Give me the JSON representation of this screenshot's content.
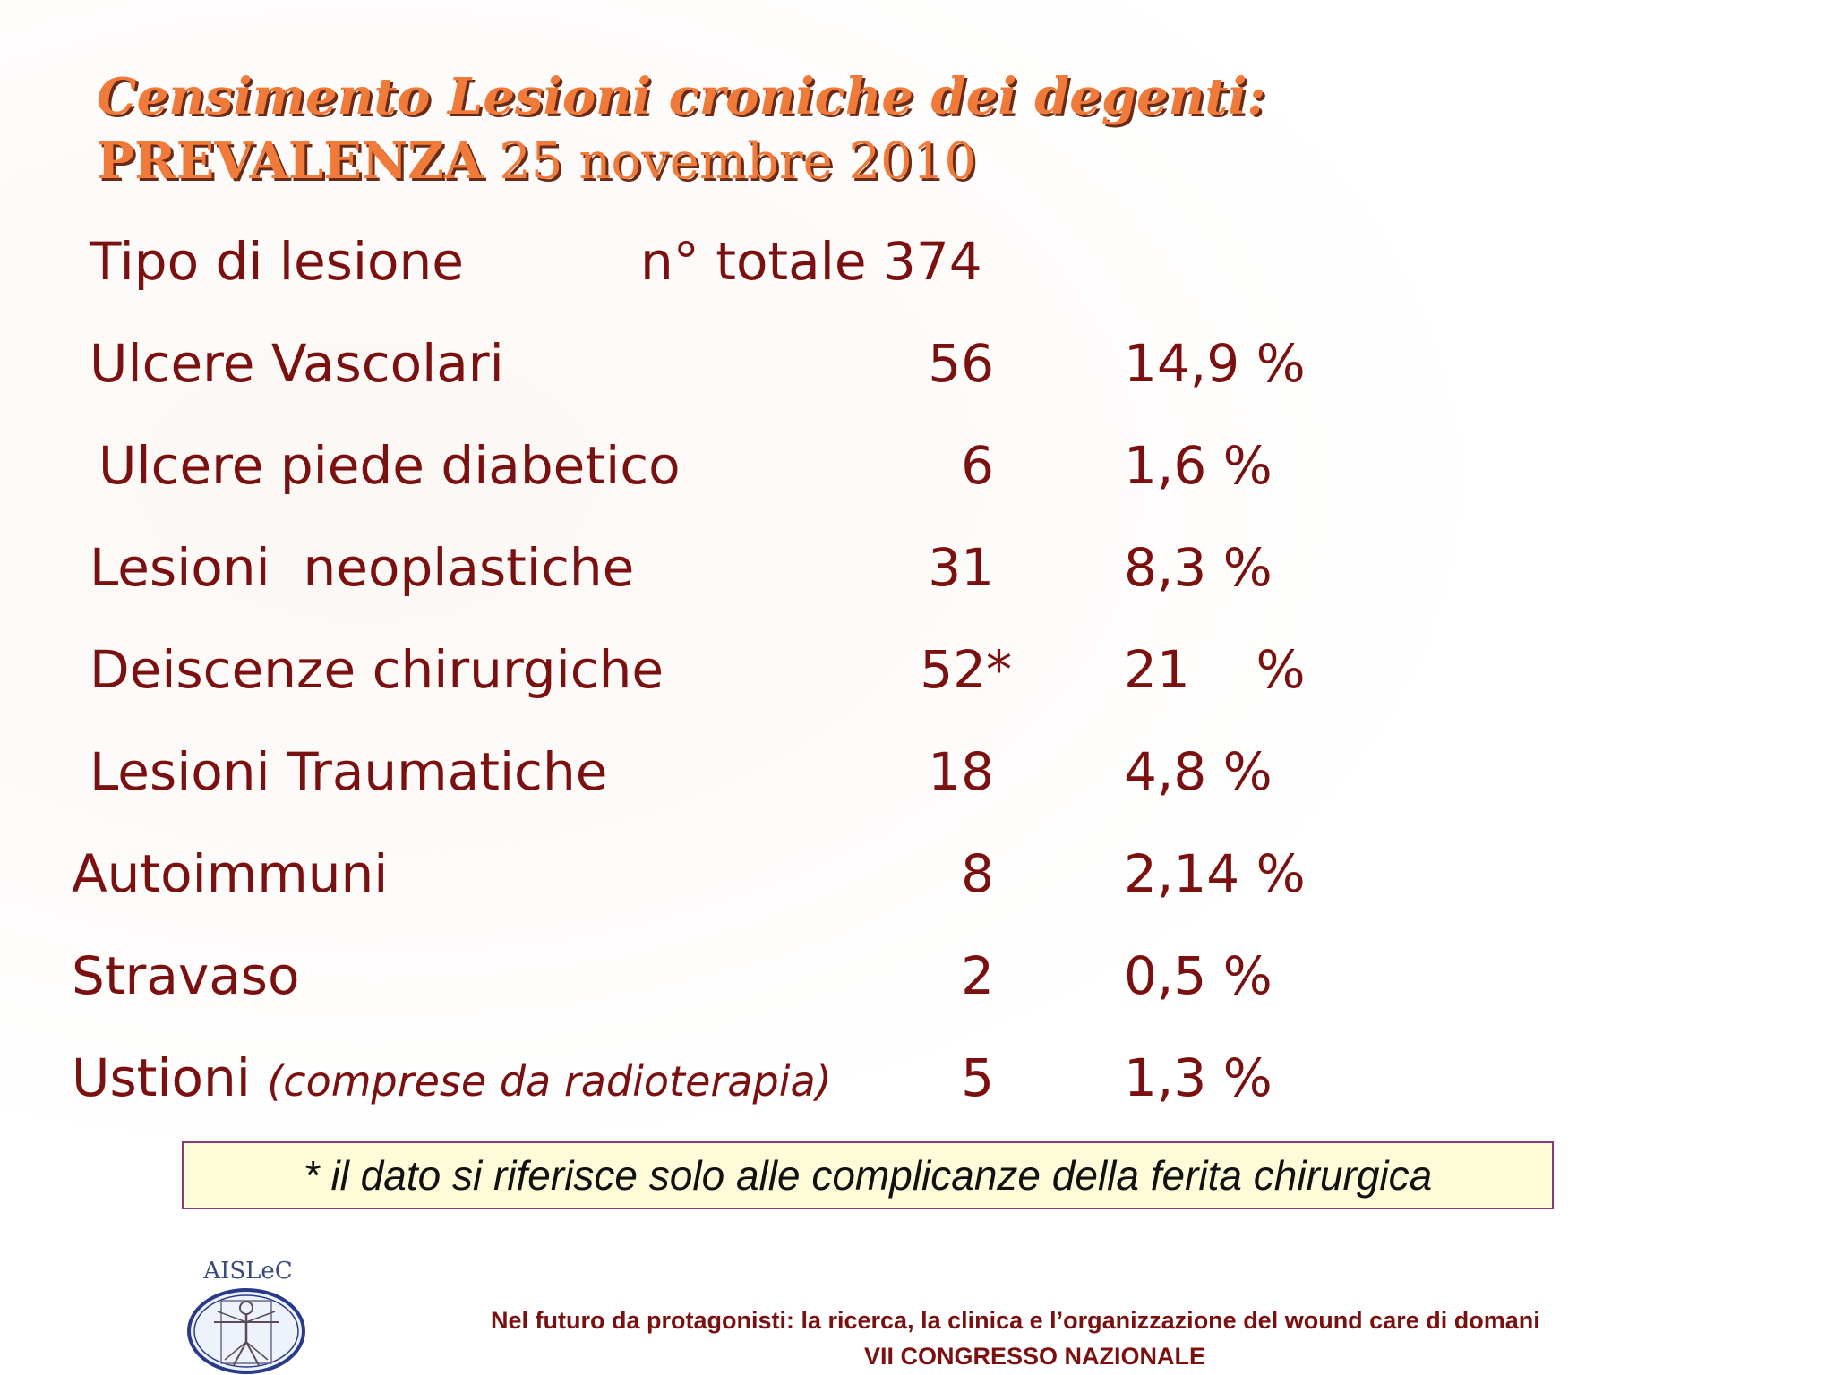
{
  "title": {
    "line1": "Censimento Lesioni croniche dei  degenti:",
    "line2_bold": "PREVALENZA",
    "line2_rest": " 25 novembre 2010"
  },
  "header": {
    "type_label": "Tipo di lesione",
    "total_label": "n° totale  374"
  },
  "rows": [
    {
      "label": "Ulcere Vascolari",
      "count": "56",
      "percent": "14,9 %"
    },
    {
      "label": "Ulcere piede diabetico",
      "count": "6",
      "percent": "1,6 %"
    },
    {
      "label": "Lesioni  neoplastiche",
      "count": "31",
      "percent": "8,3 %"
    },
    {
      "label": "Deiscenze chirurgiche",
      "count": "52*",
      "percent": "21    %"
    },
    {
      "label": "Lesioni Traumatiche",
      "count": "18",
      "percent": "4,8 %"
    },
    {
      "label": "Autoimmuni",
      "count": "8",
      "percent": "2,14 %"
    },
    {
      "label": "Stravaso",
      "count": "2",
      "percent": "0,5 %"
    },
    {
      "label": "Ustioni",
      "note": "(comprese da radioterapia)",
      "count": "5",
      "percent": "1,3 %"
    }
  ],
  "footnote": "* il dato si riferisce solo alle complicanze della ferita chirurgica",
  "logo": {
    "text": "AISLeC",
    "icon": "vitruvian-man-icon"
  },
  "footer": {
    "line1": "Nel futuro da protagonisti: la ricerca, la clinica e l’organizzazione del wound care di domani",
    "line2": "VII CONGRESSO NAZIONALE"
  },
  "colors": {
    "title": "#f07a3a",
    "title_shadow": "#6a2a16",
    "text": "#7a1010",
    "footnote_bg": "#fdfbd8",
    "footnote_border": "#8a3a78"
  }
}
